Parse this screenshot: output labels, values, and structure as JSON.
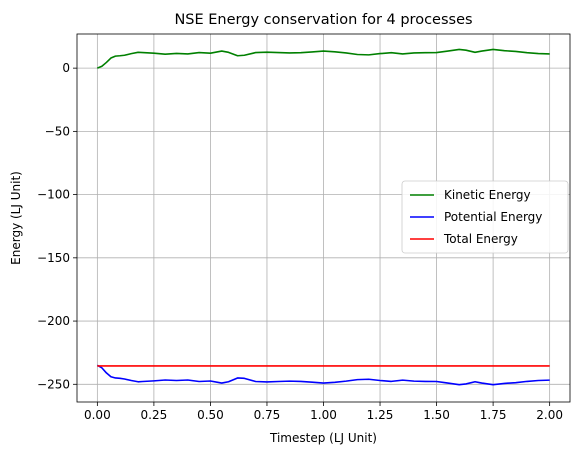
{
  "chart_data": {
    "type": "line",
    "title": "NSE Energy conservation for 4 processes",
    "xlabel": "Timestep (LJ Unit)",
    "ylabel": "Energy (LJ Unit)",
    "xlim": [
      -0.09,
      2.09
    ],
    "ylim": [
      -264,
      27
    ],
    "xticks": [
      0.0,
      0.25,
      0.5,
      0.75,
      1.0,
      1.25,
      1.5,
      1.75,
      2.0
    ],
    "xtick_labels": [
      "0.00",
      "0.25",
      "0.50",
      "0.75",
      "1.00",
      "1.25",
      "1.50",
      "1.75",
      "2.00"
    ],
    "yticks": [
      0,
      -50,
      -100,
      -150,
      -200,
      -250
    ],
    "ytick_labels": [
      "0",
      "−50",
      "−100",
      "−150",
      "−200",
      "−250"
    ],
    "grid": true,
    "legend_position": "center-right",
    "series": [
      {
        "name": "Kinetic Energy",
        "color": "#008000",
        "x": [
          0.0,
          0.02,
          0.04,
          0.06,
          0.08,
          0.1,
          0.12,
          0.15,
          0.18,
          0.2,
          0.25,
          0.3,
          0.35,
          0.4,
          0.45,
          0.5,
          0.55,
          0.58,
          0.62,
          0.65,
          0.7,
          0.75,
          0.8,
          0.85,
          0.9,
          0.95,
          1.0,
          1.05,
          1.1,
          1.15,
          1.2,
          1.25,
          1.3,
          1.35,
          1.4,
          1.45,
          1.5,
          1.55,
          1.6,
          1.63,
          1.67,
          1.7,
          1.75,
          1.8,
          1.85,
          1.9,
          1.95,
          2.0
        ],
        "y": [
          0,
          1.5,
          4.5,
          8,
          9.5,
          9.8,
          10.2,
          11.5,
          12.5,
          12.3,
          11.8,
          11.0,
          11.6,
          11.2,
          12.3,
          11.8,
          13.5,
          12.5,
          9.8,
          10.2,
          12.3,
          12.6,
          12.3,
          12.0,
          12.2,
          12.8,
          13.5,
          12.9,
          12.0,
          10.8,
          10.5,
          11.5,
          12.2,
          11.2,
          12.0,
          12.2,
          12.3,
          13.5,
          14.8,
          14.2,
          12.5,
          13.5,
          14.8,
          13.8,
          13.2,
          12.2,
          11.5,
          11.2
        ]
      },
      {
        "name": "Potential Energy",
        "color": "#0000ff",
        "x": [
          0.0,
          0.02,
          0.04,
          0.06,
          0.08,
          0.1,
          0.12,
          0.15,
          0.18,
          0.2,
          0.25,
          0.3,
          0.35,
          0.4,
          0.45,
          0.5,
          0.55,
          0.58,
          0.62,
          0.65,
          0.7,
          0.75,
          0.8,
          0.85,
          0.9,
          0.95,
          1.0,
          1.05,
          1.1,
          1.15,
          1.2,
          1.25,
          1.3,
          1.35,
          1.4,
          1.45,
          1.5,
          1.55,
          1.6,
          1.63,
          1.67,
          1.7,
          1.75,
          1.8,
          1.85,
          1.9,
          1.95,
          2.0
        ],
        "y": [
          -235,
          -237,
          -241,
          -244,
          -245,
          -245.3,
          -245.8,
          -247,
          -248,
          -247.8,
          -247.3,
          -246.6,
          -247,
          -246.6,
          -247.8,
          -247.4,
          -249,
          -248,
          -245,
          -245.3,
          -247.8,
          -248.1,
          -247.8,
          -247.5,
          -247.7,
          -248.3,
          -249,
          -248.4,
          -247.5,
          -246.3,
          -246,
          -247,
          -247.7,
          -246.7,
          -247.5,
          -247.7,
          -247.8,
          -249,
          -250.3,
          -249.7,
          -248,
          -249,
          -250.3,
          -249.3,
          -248.7,
          -247.7,
          -247,
          -246.7
        ]
      },
      {
        "name": "Total Energy",
        "color": "#ff0000",
        "x": [
          0.0,
          2.0
        ],
        "y": [
          -235.5,
          -235.5
        ]
      }
    ]
  }
}
